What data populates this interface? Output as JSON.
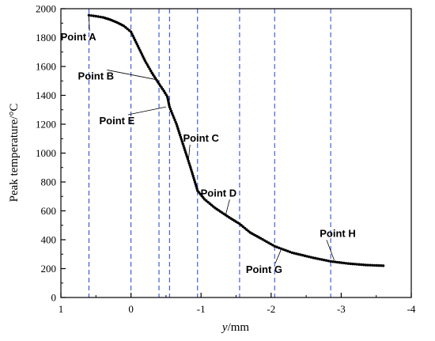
{
  "chart_data": {
    "type": "scatter",
    "xlabel_italic": "y",
    "xlabel_unit": "/mm",
    "ylabel": "Peak temperature/°C",
    "xlim": [
      1,
      -4
    ],
    "ylim": [
      0,
      2000
    ],
    "xticks": [
      1,
      0,
      -1,
      -2,
      -3,
      -4
    ],
    "xtick_labels": [
      "1",
      "0",
      "-1",
      "-2",
      "-3",
      "-4"
    ],
    "yticks": [
      0,
      200,
      400,
      600,
      800,
      1000,
      1200,
      1400,
      1600,
      1800,
      2000
    ],
    "ytick_labels": [
      "0",
      "200",
      "400",
      "600",
      "800",
      "1000",
      "1200",
      "1400",
      "1600",
      "1800",
      "2000"
    ],
    "grid": false,
    "reference_lines": {
      "color": "#1f3fd0",
      "style": "dashed",
      "x": [
        0.6,
        0,
        -0.4,
        -0.55,
        -0.95,
        -1.55,
        -2.05,
        -2.85
      ]
    },
    "series": [
      {
        "color": "#000000",
        "points": [
          [
            0.6,
            1955
          ],
          [
            0.5,
            1948
          ],
          [
            0.4,
            1940
          ],
          [
            0.3,
            1925
          ],
          [
            0.2,
            1905
          ],
          [
            0.1,
            1880
          ],
          [
            0.0,
            1840
          ],
          [
            -0.1,
            1740
          ],
          [
            -0.2,
            1640
          ],
          [
            -0.3,
            1555
          ],
          [
            -0.4,
            1480
          ],
          [
            -0.47,
            1430
          ],
          [
            -0.52,
            1390
          ],
          [
            -0.55,
            1320
          ],
          [
            -0.65,
            1200
          ],
          [
            -0.75,
            1050
          ],
          [
            -0.85,
            900
          ],
          [
            -0.95,
            740
          ],
          [
            -1.05,
            680
          ],
          [
            -1.2,
            620
          ],
          [
            -1.4,
            555
          ],
          [
            -1.55,
            510
          ],
          [
            -1.7,
            450
          ],
          [
            -1.85,
            410
          ],
          [
            -2.05,
            355
          ],
          [
            -2.3,
            310
          ],
          [
            -2.6,
            275
          ],
          [
            -2.85,
            250
          ],
          [
            -3.1,
            235
          ],
          [
            -3.35,
            225
          ],
          [
            -3.6,
            220
          ]
        ]
      }
    ],
    "annotations": [
      {
        "text": "Point A",
        "x": 0.6,
        "y": 1955,
        "label_x": 0.75,
        "label_y": 1780
      },
      {
        "text": "Point B",
        "x": -0.35,
        "y": 1510,
        "label_x": 0.5,
        "label_y": 1510
      },
      {
        "text": "Point E",
        "x": -0.5,
        "y": 1320,
        "label_x": 0.2,
        "label_y": 1200
      },
      {
        "text": "Point C",
        "x": -0.82,
        "y": 950,
        "label_x": -1.0,
        "label_y": 1080
      },
      {
        "text": "Point D",
        "x": -1.35,
        "y": 570,
        "label_x": -1.25,
        "label_y": 700
      },
      {
        "text": "Point G",
        "x": -2.15,
        "y": 340,
        "label_x": -1.9,
        "label_y": 170
      },
      {
        "text": "Point H",
        "x": -2.9,
        "y": 258,
        "label_x": -2.95,
        "label_y": 420
      }
    ]
  }
}
